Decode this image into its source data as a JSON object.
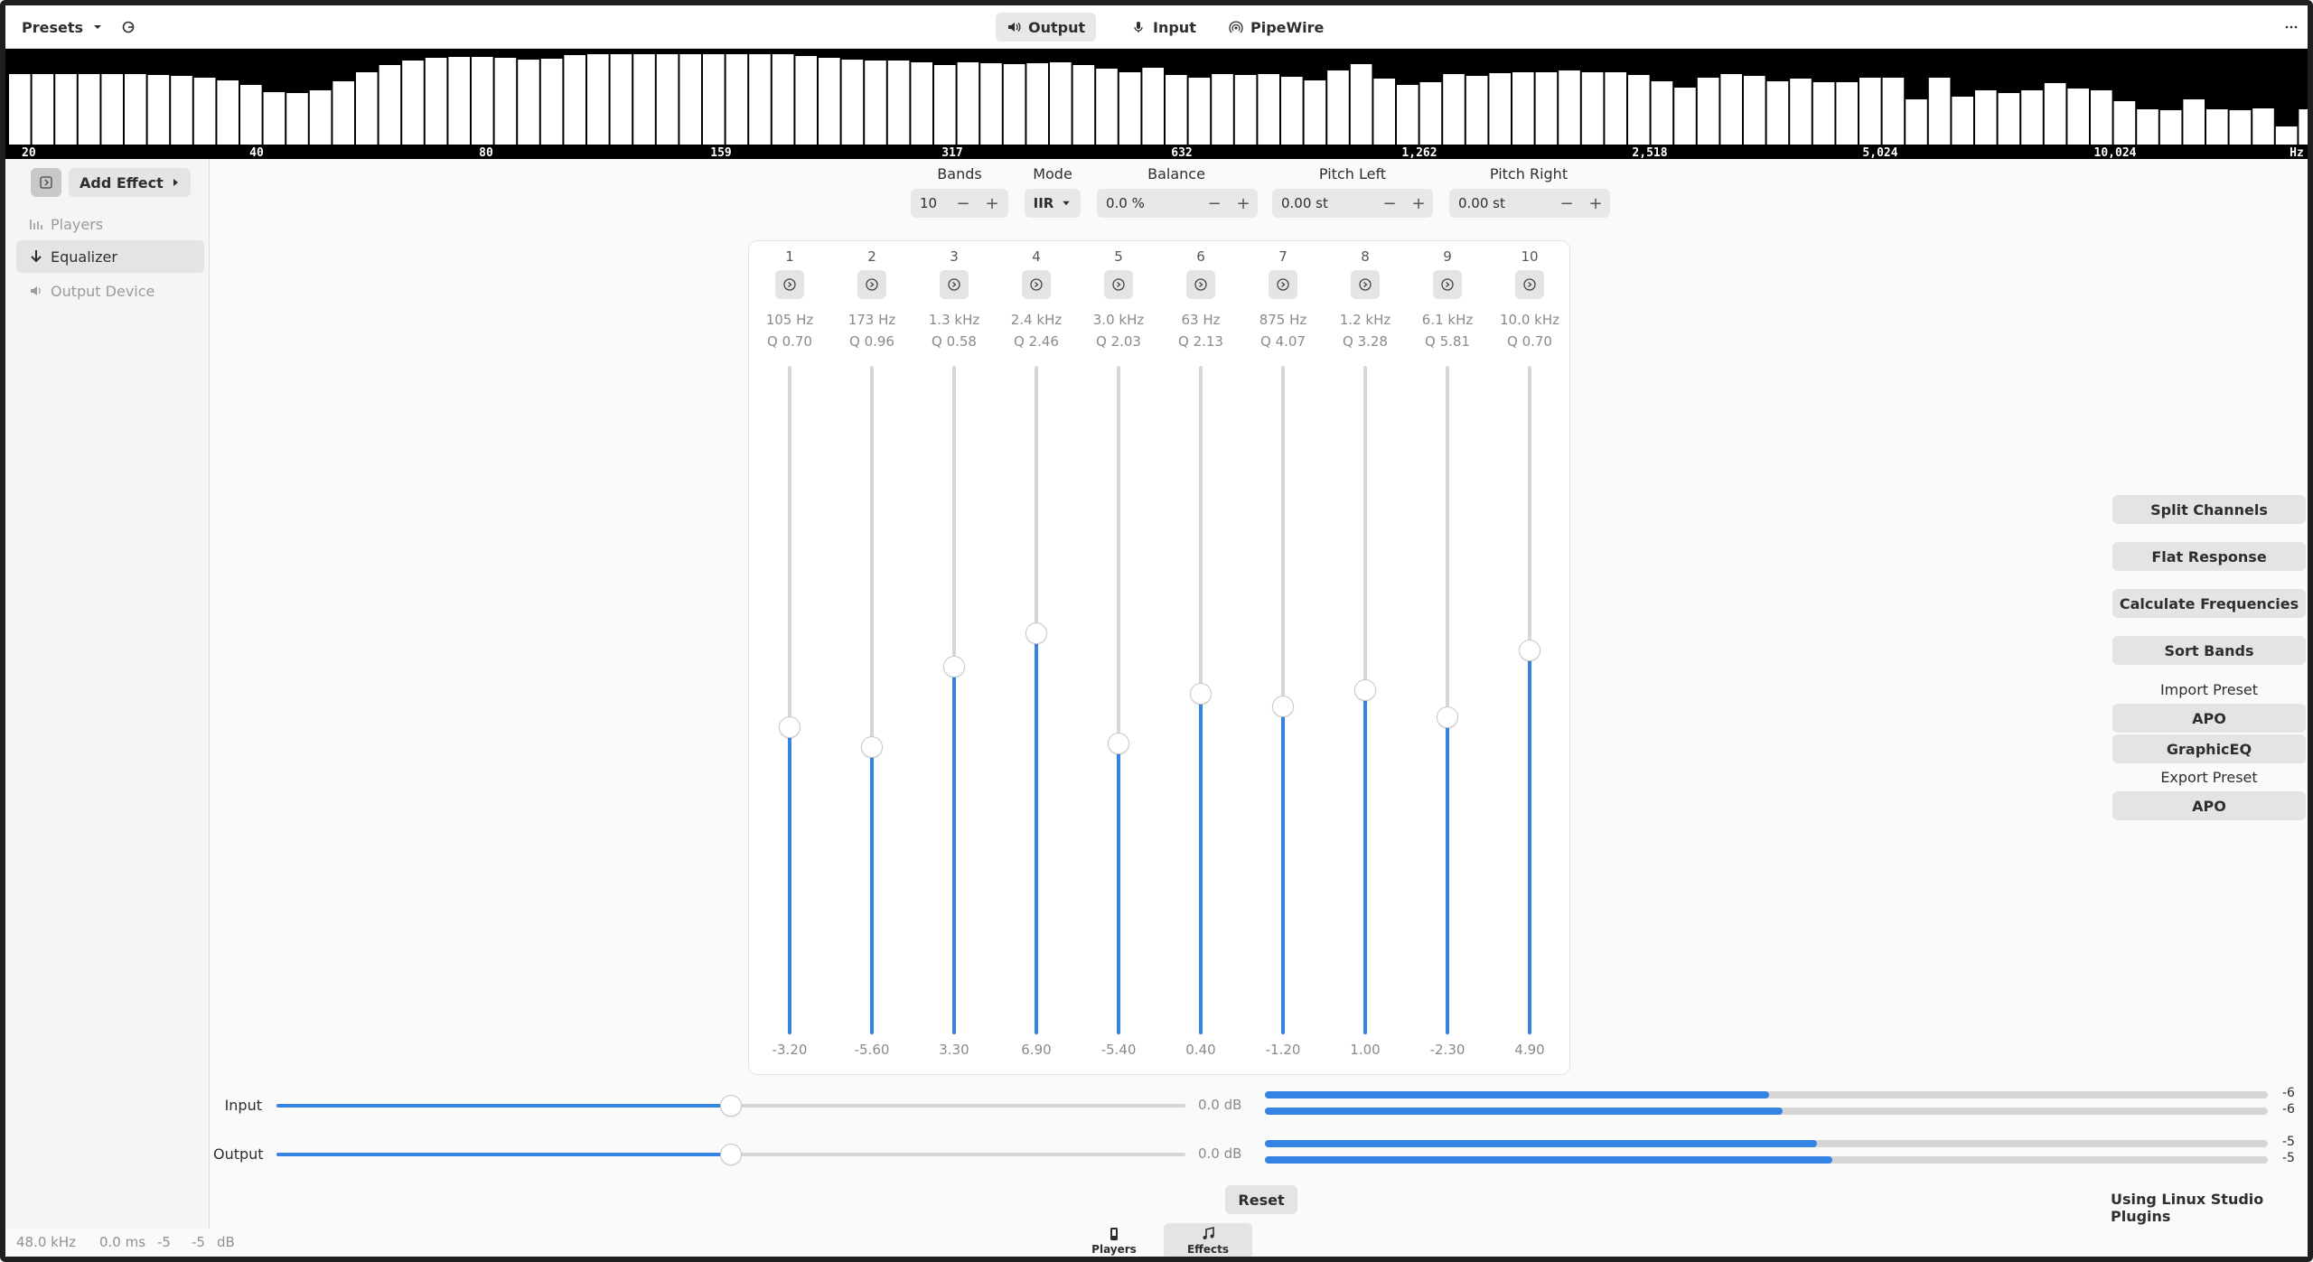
{
  "header": {
    "presets_label": "Presets",
    "tabs": [
      {
        "label": "Output",
        "icon": "speaker-icon",
        "active": true
      },
      {
        "label": "Input",
        "icon": "microphone-icon",
        "active": false
      },
      {
        "label": "PipeWire",
        "icon": "antenna-icon",
        "active": false
      }
    ]
  },
  "spectrum": {
    "labels": [
      "20",
      "40",
      "80",
      "159",
      "317",
      "632",
      "1,262",
      "2,518",
      "5,024",
      "10,024",
      "Hz"
    ],
    "levels": [
      0.78,
      0.78,
      0.78,
      0.78,
      0.78,
      0.78,
      0.77,
      0.76,
      0.74,
      0.71,
      0.66,
      0.58,
      0.57,
      0.6,
      0.7,
      0.8,
      0.88,
      0.93,
      0.96,
      0.97,
      0.97,
      0.96,
      0.94,
      0.95,
      0.99,
      1.0,
      1.0,
      1.0,
      1.0,
      1.0,
      1.0,
      1.0,
      1.0,
      1.0,
      0.98,
      0.96,
      0.94,
      0.93,
      0.93,
      0.91,
      0.88,
      0.91,
      0.9,
      0.89,
      0.9,
      0.91,
      0.88,
      0.84,
      0.8,
      0.85,
      0.77,
      0.74,
      0.78,
      0.77,
      0.78,
      0.75,
      0.71,
      0.82,
      0.89,
      0.73,
      0.66,
      0.69,
      0.78,
      0.76,
      0.79,
      0.8,
      0.8,
      0.82,
      0.8,
      0.8,
      0.77,
      0.7,
      0.63,
      0.74,
      0.78,
      0.76,
      0.7,
      0.73,
      0.69,
      0.69,
      0.74,
      0.74,
      0.5,
      0.74,
      0.53,
      0.6,
      0.57,
      0.6,
      0.68,
      0.62,
      0.6,
      0.48,
      0.39,
      0.38,
      0.5,
      0.39,
      0.38,
      0.4,
      0.2,
      0.39,
      0.4,
      0.39,
      0.43,
      0.4,
      0.39,
      0.33,
      0.29,
      0.2,
      0.11,
      0.04
    ]
  },
  "sidebar": {
    "add_effect_label": "Add Effect",
    "items": [
      {
        "label": "Players",
        "icon": "players-icon",
        "selected": false
      },
      {
        "label": "Equalizer",
        "icon": "arrow-down-icon",
        "selected": true
      },
      {
        "label": "Output Device",
        "icon": "speaker-icon",
        "selected": false
      }
    ]
  },
  "controls": {
    "bands_label": "Bands",
    "bands_value": "10",
    "mode_label": "Mode",
    "mode_value": "IIR",
    "balance_label": "Balance",
    "balance_value": "0.0 %",
    "pitch_left_label": "Pitch Left",
    "pitch_left_value": "0.00 st",
    "pitch_right_label": "Pitch Right",
    "pitch_right_value": "0.00 st"
  },
  "bands": [
    {
      "num": "1",
      "freq": "105 Hz",
      "q": "Q 0.70",
      "gain": "-3.20",
      "level": 0.46
    },
    {
      "num": "2",
      "freq": "173 Hz",
      "q": "Q 0.96",
      "gain": "-5.60",
      "level": 0.43
    },
    {
      "num": "3",
      "freq": "1.3 kHz",
      "q": "Q 0.58",
      "gain": "3.30",
      "level": 0.55
    },
    {
      "num": "4",
      "freq": "2.4 kHz",
      "q": "Q 2.46",
      "gain": "6.90",
      "level": 0.6
    },
    {
      "num": "5",
      "freq": "3.0 kHz",
      "q": "Q 2.03",
      "gain": "-5.40",
      "level": 0.435
    },
    {
      "num": "6",
      "freq": "63 Hz",
      "q": "Q 2.13",
      "gain": "0.40",
      "level": 0.51
    },
    {
      "num": "7",
      "freq": "875 Hz",
      "q": "Q 4.07",
      "gain": "-1.20",
      "level": 0.49
    },
    {
      "num": "8",
      "freq": "1.2 kHz",
      "q": "Q 3.28",
      "gain": "1.00",
      "level": 0.515
    },
    {
      "num": "9",
      "freq": "6.1 kHz",
      "q": "Q 5.81",
      "gain": "-2.30",
      "level": 0.475
    },
    {
      "num": "10",
      "freq": "10.0 kHz",
      "q": "Q 0.70",
      "gain": "4.90",
      "level": 0.575
    }
  ],
  "right_panel": {
    "split_channels": "Split Channels",
    "flat_response": "Flat Response",
    "calculate_frequencies": "Calculate Frequencies",
    "sort_bands": "Sort Bands",
    "import_preset_label": "Import Preset",
    "import_apo": "APO",
    "import_graphiceq": "GraphicEQ",
    "export_preset_label": "Export Preset",
    "export_apo": "APO"
  },
  "io": {
    "input_label": "Input",
    "input_db": "0.0 dB",
    "input_level": 0.5,
    "output_label": "Output",
    "output_db": "0.0 dB",
    "output_level": 0.5,
    "input_meters": [
      {
        "level": 0.503,
        "value": "-6"
      },
      {
        "level": 0.516,
        "value": "-6"
      }
    ],
    "output_meters": [
      {
        "level": 0.55,
        "value": "-5"
      },
      {
        "level": 0.566,
        "value": "-5"
      }
    ]
  },
  "reset_label": "Reset",
  "plugins_label": "Using Linux Studio Plugins",
  "status": {
    "rate": "48.0 kHz",
    "latency": "0.0 ms",
    "left": "-5",
    "right": "-5",
    "unit": "dB"
  },
  "views": [
    {
      "label": "Players",
      "icon": "players-icon",
      "active": false
    },
    {
      "label": "Effects",
      "icon": "music-note-icon",
      "active": true
    }
  ],
  "colors": {
    "accent": "#3584e4"
  }
}
